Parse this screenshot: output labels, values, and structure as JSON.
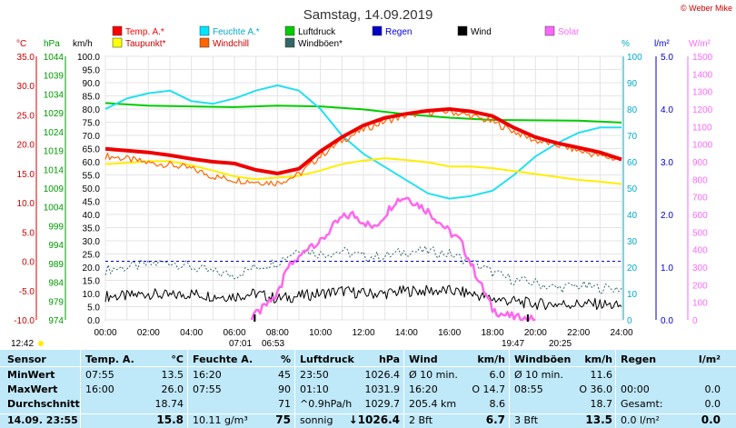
{
  "title": "Samstag, 14.09.2019",
  "copyright": "© Weber Mike",
  "legend": [
    {
      "label": "Temp. A.*",
      "color": "#ff0000"
    },
    {
      "label": "Feuchte A.*",
      "color": "#00e5ff"
    },
    {
      "label": "Luftdruck",
      "color": "#00cc00"
    },
    {
      "label": "Regen",
      "color": "#0000cc"
    },
    {
      "label": "Wind",
      "color": "#000000"
    },
    {
      "label": "Solar",
      "color": "#ff66ff"
    },
    {
      "label": "Taupunkt*",
      "color": "#ffff00"
    },
    {
      "label": "Windchill",
      "color": "#ff6600"
    },
    {
      "label": "Windböen*",
      "color": "#336666"
    }
  ],
  "axes": {
    "temp_unit": "°C",
    "press_unit": "hPa",
    "wind_unit": "km/h",
    "hum_unit": "%",
    "rain_unit": "l/m²",
    "solar_unit": "W/m²",
    "temp_ticks": [
      "35.0",
      "30.0",
      "25.0",
      "20.0",
      "15.0",
      "10.0",
      "5.0",
      "0.0",
      "-5.0",
      "-10.0"
    ],
    "press_ticks": [
      "1044",
      "1039",
      "1034",
      "1029",
      "1024",
      "1019",
      "1014",
      "1009",
      "1004",
      "999",
      "994",
      "989",
      "984",
      "979",
      "974"
    ],
    "wind_ticks": [
      "100.0",
      "95.0",
      "90.0",
      "85.0",
      "80.0",
      "75.0",
      "70.0",
      "65.0",
      "60.0",
      "55.0",
      "50.0",
      "45.0",
      "40.0",
      "35.0",
      "30.0",
      "25.0",
      "20.0",
      "15.0",
      "10.0",
      "5.0",
      "0.0"
    ],
    "hum_ticks": [
      "100",
      "90",
      "80",
      "70",
      "60",
      "50",
      "40",
      "30",
      "20",
      "10",
      "0"
    ],
    "rain_ticks": [
      "5.0",
      "4.0",
      "3.0",
      "2.0",
      "1.0",
      "0.0"
    ],
    "solar_ticks": [
      "1500",
      "1400",
      "1300",
      "1200",
      "1100",
      "1000",
      "900",
      "800",
      "700",
      "600",
      "500",
      "400",
      "300",
      "200",
      "100",
      "0"
    ],
    "x_ticks": [
      "00:00",
      "02:00",
      "04:00",
      "06:00",
      "08:00",
      "10:00",
      "12:00",
      "14:00",
      "16:00",
      "18:00",
      "20:00",
      "22:00",
      "24:00"
    ]
  },
  "sun_times": {
    "moon_set": "12:42",
    "sunrise": "07:01",
    "sunrise_end": "06:53",
    "sunset": "19:47",
    "sunset_end": "20:25"
  },
  "chart_data": {
    "type": "line",
    "title": "Samstag, 14.09.2019",
    "x_unit": "hour",
    "xlim": [
      0,
      24
    ],
    "series": [
      {
        "name": "Temp. A.*",
        "axis": "°C",
        "ylim": [
          -10,
          35
        ],
        "x": [
          0,
          1,
          2,
          3,
          4,
          5,
          6,
          7,
          8,
          9,
          10,
          11,
          12,
          13,
          14,
          15,
          16,
          17,
          18,
          19,
          20,
          21,
          22,
          23,
          24
        ],
        "y": [
          19.2,
          18.9,
          18.6,
          18.1,
          17.5,
          17.0,
          16.7,
          15.6,
          15.0,
          15.8,
          18.8,
          21.2,
          23.2,
          24.5,
          25.2,
          25.7,
          26.0,
          25.6,
          24.8,
          22.8,
          21.2,
          20.2,
          19.4,
          18.6,
          17.4
        ]
      },
      {
        "name": "Windchill",
        "axis": "°C",
        "ylim": [
          -10,
          35
        ],
        "x": [
          0,
          1,
          2,
          3,
          4,
          5,
          6,
          7,
          8,
          9,
          10,
          11,
          12,
          13,
          14,
          15,
          16,
          17,
          18,
          19,
          20,
          21,
          22,
          23,
          24
        ],
        "y": [
          18.0,
          17.5,
          16.8,
          16.5,
          15.8,
          14.5,
          13.9,
          13.6,
          13.4,
          14.8,
          18.0,
          20.6,
          22.5,
          23.9,
          24.9,
          25.5,
          25.6,
          24.8,
          23.8,
          22.2,
          20.6,
          19.9,
          18.9,
          18.0,
          17.3
        ]
      },
      {
        "name": "Taupunkt*",
        "axis": "°C",
        "ylim": [
          -10,
          35
        ],
        "x": [
          0,
          1,
          2,
          3,
          4,
          5,
          6,
          7,
          8,
          9,
          10,
          11,
          12,
          13,
          14,
          15,
          16,
          17,
          18,
          19,
          20,
          21,
          22,
          23,
          24
        ],
        "y": [
          16.6,
          16.8,
          17.1,
          17.1,
          16.4,
          15.5,
          14.5,
          14.0,
          14.3,
          14.6,
          15.5,
          16.6,
          17.2,
          17.6,
          17.3,
          16.9,
          16.2,
          16.2,
          15.9,
          15.4,
          14.9,
          14.4,
          13.9,
          13.6,
          13.2
        ]
      },
      {
        "name": "Feuchte A.*",
        "axis": "%",
        "ylim": [
          0,
          100
        ],
        "x": [
          0,
          1,
          2,
          3,
          4,
          5,
          6,
          7,
          8,
          9,
          10,
          11,
          12,
          13,
          14,
          15,
          16,
          17,
          18,
          19,
          20,
          21,
          22,
          23,
          24
        ],
        "y": [
          80,
          84,
          86,
          87,
          83,
          82,
          84,
          87,
          89,
          87,
          80,
          70,
          63,
          58,
          53,
          48,
          46,
          47,
          49,
          55,
          62,
          67,
          71,
          73,
          73
        ]
      },
      {
        "name": "Luftdruck",
        "axis": "hPa",
        "ylim": [
          974,
          1044
        ],
        "x": [
          0,
          2,
          4,
          6,
          8,
          10,
          12,
          14,
          16,
          18,
          20,
          22,
          24
        ],
        "y": [
          1031.6,
          1030.9,
          1030.7,
          1030.5,
          1030.9,
          1030.7,
          1029.9,
          1028.6,
          1027.7,
          1027.1,
          1027.0,
          1026.9,
          1026.4
        ]
      },
      {
        "name": "Wind",
        "axis": "km/h",
        "ylim": [
          0,
          100
        ],
        "x": [
          0,
          1,
          2,
          3,
          4,
          5,
          6,
          7,
          8,
          9,
          10,
          11,
          12,
          13,
          14,
          15,
          16,
          17,
          18,
          19,
          20,
          21,
          22,
          23,
          24
        ],
        "y": [
          9,
          9,
          10,
          9,
          10,
          9,
          9,
          10,
          8,
          9,
          10,
          11,
          10,
          10,
          11,
          11,
          11,
          10,
          8,
          7,
          6,
          6,
          6,
          6,
          5
        ]
      },
      {
        "name": "Windböen*",
        "axis": "km/h",
        "ylim": [
          0,
          100
        ],
        "x": [
          0,
          1,
          2,
          3,
          4,
          5,
          6,
          7,
          8,
          9,
          10,
          11,
          12,
          13,
          14,
          15,
          16,
          17,
          18,
          19,
          20,
          21,
          22,
          23,
          24
        ],
        "y": [
          19,
          20,
          21,
          22,
          20,
          18,
          17,
          20,
          22,
          27,
          25,
          26,
          24,
          24,
          26,
          26,
          25,
          22,
          18,
          15,
          14,
          12,
          13,
          12,
          12
        ]
      },
      {
        "name": "Solar",
        "axis": "W/m²",
        "ylim": [
          0,
          1500
        ],
        "x": [
          6.8,
          7,
          8,
          8.5,
          9,
          9.5,
          10,
          10.5,
          11,
          11.5,
          12,
          12.5,
          13,
          13.5,
          14,
          14.5,
          15,
          15.5,
          16,
          16.5,
          17,
          17.5,
          18,
          18.5,
          19,
          19.5,
          20
        ],
        "y": [
          0,
          30,
          140,
          300,
          350,
          430,
          440,
          520,
          580,
          600,
          560,
          520,
          600,
          680,
          700,
          660,
          620,
          560,
          500,
          450,
          320,
          190,
          60,
          30,
          15,
          5,
          0
        ]
      },
      {
        "name": "Regen",
        "axis": "l/m²",
        "ylim": [
          0,
          5
        ],
        "x": [
          0,
          24
        ],
        "y": [
          0,
          0
        ]
      }
    ]
  },
  "table": {
    "headers": [
      {
        "title": "Sensor",
        "unit": ""
      },
      {
        "title": "Temp. A.",
        "unit": "°C"
      },
      {
        "title": "Feuchte A.",
        "unit": "%"
      },
      {
        "title": "Luftdruck",
        "unit": "hPa"
      },
      {
        "title": "Wind",
        "unit": "km/h"
      },
      {
        "title": "Windböen",
        "unit": "km/h"
      },
      {
        "title": "Regen",
        "unit": "l/m²"
      }
    ],
    "rows": [
      {
        "label": "MinWert",
        "cells": [
          [
            "07:55",
            "13.5"
          ],
          [
            "16:20",
            "45"
          ],
          [
            "23:50",
            "1026.4"
          ],
          [
            "Ø 10 min.",
            "6.0"
          ],
          [
            "Ø 10 min.",
            "11.6"
          ],
          [
            "",
            ""
          ]
        ]
      },
      {
        "label": "MaxWert",
        "cells": [
          [
            "16:00",
            "26.0"
          ],
          [
            "07:55",
            "90"
          ],
          [
            "01:10",
            "1031.9"
          ],
          [
            "16:20",
            "O 14.7"
          ],
          [
            "08:55",
            "O 36.0"
          ],
          [
            "00:00",
            "0.0"
          ]
        ]
      },
      {
        "label": "Durchschnitt",
        "cells": [
          [
            "",
            "18.74"
          ],
          [
            "",
            "71"
          ],
          [
            "^0.9hPa/h",
            "1029.7"
          ],
          [
            "205.4 km",
            "8.6"
          ],
          [
            "",
            "18.7"
          ],
          [
            "Gesamt:",
            "0.0"
          ]
        ]
      },
      {
        "label": "14.09.  23:55",
        "cells": [
          [
            "",
            "15.8"
          ],
          [
            "10.11 g/m³",
            "75"
          ],
          [
            "sonnig",
            "↓1026.4"
          ],
          [
            "2 Bft",
            "6.7"
          ],
          [
            "3 Bft",
            "13.5"
          ],
          [
            "0.0 l/m²",
            "0.0"
          ]
        ]
      }
    ]
  }
}
